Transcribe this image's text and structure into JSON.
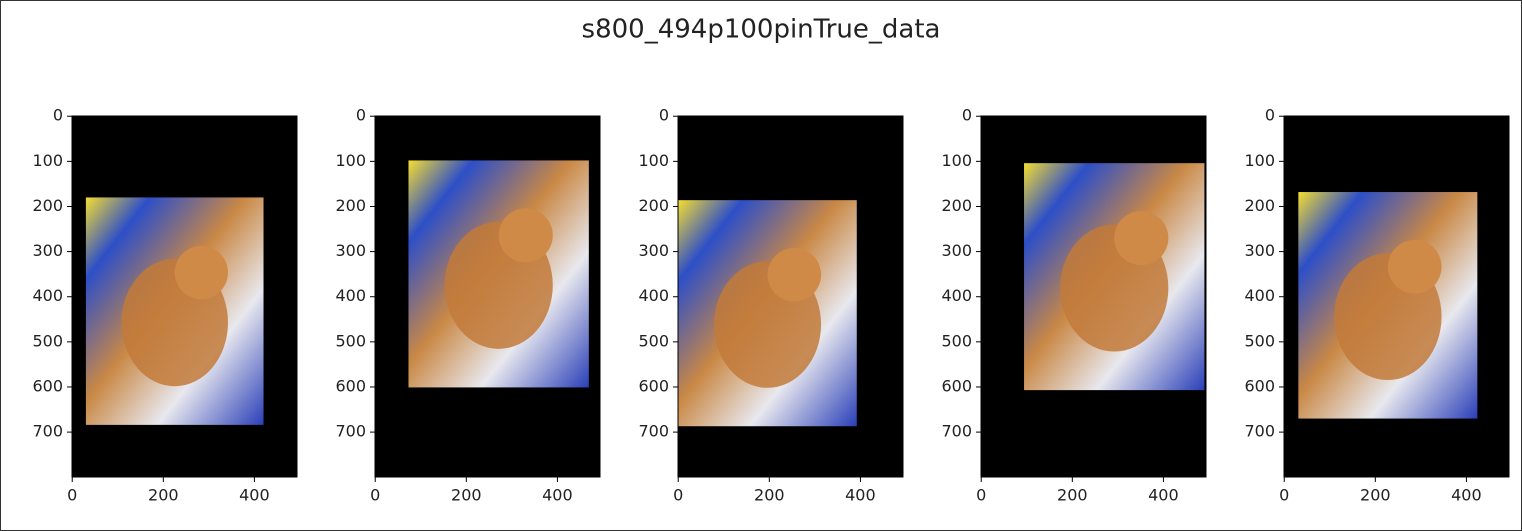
{
  "title": "s800_494p100pinTrue_data",
  "chart_data": [
    {
      "type": "image",
      "xlim": [
        -0.5,
        493.5
      ],
      "ylim": [
        799.5,
        -0.5
      ],
      "xticks": [
        0,
        200,
        400
      ],
      "yticks": [
        0,
        100,
        200,
        300,
        400,
        500,
        600,
        700
      ],
      "photo_x": [
        30,
        420
      ],
      "photo_y": [
        180,
        684
      ]
    },
    {
      "type": "image",
      "xlim": [
        -0.5,
        493.5
      ],
      "ylim": [
        799.5,
        -0.5
      ],
      "xticks": [
        0,
        200,
        400
      ],
      "yticks": [
        0,
        100,
        200,
        300,
        400,
        500,
        600,
        700
      ],
      "photo_x": [
        73,
        469
      ],
      "photo_y": [
        98,
        601
      ]
    },
    {
      "type": "image",
      "xlim": [
        -0.5,
        493.5
      ],
      "ylim": [
        799.5,
        -0.5
      ],
      "xticks": [
        0,
        200,
        400
      ],
      "yticks": [
        0,
        100,
        200,
        300,
        400,
        500,
        600,
        700
      ],
      "photo_x": [
        0,
        392
      ],
      "photo_y": [
        186,
        687
      ]
    },
    {
      "type": "image",
      "xlim": [
        -0.5,
        493.5
      ],
      "ylim": [
        799.5,
        -0.5
      ],
      "xticks": [
        0,
        200,
        400
      ],
      "yticks": [
        0,
        100,
        200,
        300,
        400,
        500,
        600,
        700
      ],
      "photo_x": [
        94,
        490
      ],
      "photo_y": [
        104,
        607
      ]
    },
    {
      "type": "image",
      "xlim": [
        -0.5,
        493.5
      ],
      "ylim": [
        799.5,
        -0.5
      ],
      "xticks": [
        0,
        200,
        400
      ],
      "yticks": [
        0,
        100,
        200,
        300,
        400,
        500,
        600,
        700
      ],
      "photo_x": [
        31,
        424
      ],
      "photo_y": [
        168,
        670
      ]
    }
  ]
}
